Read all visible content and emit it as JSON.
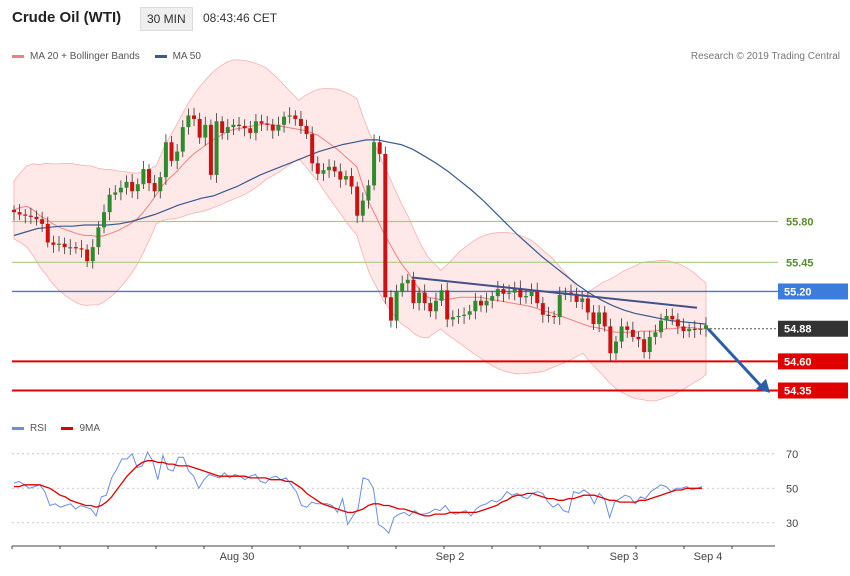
{
  "header": {
    "title": "Crude Oil (WTI)",
    "timeframe": "30 MIN",
    "time": "08:43:46 CET"
  },
  "legend": {
    "ma20_label": "MA 20 + Bollinger Bands",
    "ma50_label": "MA 50",
    "rsi_label": "RSI",
    "ma9_label": "9MA"
  },
  "copyright": "Research © 2019 Trading Central",
  "colors": {
    "ma20": "#f08080",
    "band": "#ffd9d9",
    "ma50": "#3a5a90",
    "up_candle": "#2e8b2e",
    "down_candle": "#cc1111",
    "support": "#e00000",
    "pivot": "#3c7ddc",
    "resistance": "#a8cc82",
    "last_price": "#333333",
    "trendline": "#44508a",
    "arrow": "#2a5ea8",
    "rsi": "#6a8ee0",
    "rsi_ma": "#e00000"
  },
  "chart_data": [
    {
      "type": "candlestick",
      "instrument": "Crude Oil (WTI)",
      "interval": "30 MIN",
      "price_range": [
        54.2,
        57.1
      ],
      "x_labels": [
        "Aug 30",
        "Sep 2",
        "Sep 3",
        "Sep 4"
      ],
      "levels": [
        {
          "label": "55.80",
          "value": 55.8,
          "role": "resistance"
        },
        {
          "label": "55.45",
          "value": 55.45,
          "role": "resistance"
        },
        {
          "label": "55.20",
          "value": 55.2,
          "role": "pivot"
        },
        {
          "label": "54.88",
          "value": 54.88,
          "role": "last_price"
        },
        {
          "label": "54.60",
          "value": 54.6,
          "role": "support"
        },
        {
          "label": "54.35",
          "value": 54.35,
          "role": "support"
        }
      ],
      "close": [
        55.88,
        55.86,
        55.85,
        55.84,
        55.82,
        55.78,
        55.62,
        55.6,
        55.61,
        55.58,
        55.58,
        55.57,
        55.56,
        55.46,
        55.58,
        55.75,
        55.88,
        56.03,
        56.05,
        56.09,
        56.14,
        56.06,
        56.12,
        56.25,
        56.13,
        56.06,
        56.18,
        56.48,
        56.32,
        56.4,
        56.61,
        56.71,
        56.68,
        56.52,
        56.63,
        56.2,
        56.66,
        56.56,
        56.61,
        56.63,
        56.62,
        56.6,
        56.56,
        56.66,
        56.64,
        56.63,
        56.58,
        56.63,
        56.7,
        56.71,
        56.68,
        56.62,
        56.55,
        56.3,
        56.21,
        56.24,
        56.27,
        56.23,
        56.16,
        56.19,
        56.1,
        55.85,
        55.98,
        56.11,
        56.48,
        56.38,
        55.15,
        54.95,
        55.2,
        55.27,
        55.3,
        55.1,
        55.19,
        55.1,
        55.03,
        55.12,
        55.21,
        54.96,
        54.98,
        54.99,
        55.0,
        55.03,
        55.12,
        55.08,
        55.12,
        55.16,
        55.22,
        55.18,
        55.19,
        55.23,
        55.15,
        55.16,
        55.21,
        55.1,
        55.0,
        54.99,
        54.98,
        55.17,
        55.19,
        55.18,
        55.11,
        55.14,
        55.02,
        54.92,
        55.02,
        54.9,
        54.67,
        54.77,
        54.9,
        54.87,
        54.81,
        54.79,
        54.68,
        54.81,
        54.85,
        54.95,
        54.99,
        54.96,
        54.9,
        54.86,
        54.88,
        54.87,
        54.88,
        54.91
      ],
      "volume_note": "",
      "ma20": [
        55.9,
        55.92,
        55.93,
        55.9,
        55.85,
        55.82,
        55.78,
        55.75,
        55.73,
        55.71,
        55.69,
        55.68,
        55.68,
        55.67,
        55.68,
        55.7,
        55.72,
        55.75,
        55.78,
        55.82,
        55.88,
        55.95,
        56.03,
        56.11,
        56.17,
        56.22,
        56.28,
        56.34,
        56.39,
        56.43,
        56.47,
        56.51,
        56.54,
        56.57,
        56.59,
        56.6,
        56.61,
        56.62,
        56.63,
        56.64,
        56.63,
        56.62,
        56.61,
        56.6,
        56.59,
        56.58,
        56.56,
        56.54,
        56.5,
        56.46,
        56.42,
        56.37,
        56.32,
        56.27,
        56.1,
        55.95,
        55.84,
        55.72,
        55.62,
        55.52,
        55.43,
        55.36,
        55.27,
        55.2,
        55.15,
        55.14,
        55.13,
        55.13,
        55.14,
        55.15,
        55.15,
        55.15,
        55.15,
        55.14,
        55.13,
        55.12,
        55.11,
        55.1,
        55.09,
        55.08,
        55.07,
        55.05,
        55.03,
        55.02,
        55.0,
        54.98,
        54.96,
        54.94,
        54.92,
        54.9,
        54.89,
        54.88,
        54.86,
        54.85,
        54.85,
        54.85,
        54.85,
        54.86,
        54.86,
        54.86,
        54.87,
        54.88,
        54.88,
        54.89,
        54.89,
        54.89,
        54.88,
        54.88
      ],
      "ma50": [
        55.68,
        55.71,
        55.74,
        55.75,
        55.76,
        55.76,
        55.77,
        55.77,
        55.77,
        55.78,
        55.8,
        55.83,
        55.86,
        55.9,
        55.94,
        55.97,
        56.0,
        56.02,
        56.06,
        56.1,
        56.15,
        56.2,
        56.24,
        56.28,
        56.32,
        56.36,
        56.4,
        56.43,
        56.46,
        56.48,
        56.5,
        56.5,
        56.48,
        56.46,
        56.42,
        56.36,
        56.3,
        56.23,
        56.15,
        56.07,
        55.98,
        55.88,
        55.78,
        55.68,
        55.59,
        55.5,
        55.42,
        55.34,
        55.26,
        55.19,
        55.13,
        55.08,
        55.04,
        55.01,
        54.99,
        54.97,
        54.95,
        54.94,
        54.93,
        54.92
      ],
      "ma50_start_index": 0,
      "ma20_start_index": 0
    },
    {
      "type": "line",
      "name": "RSI panel",
      "ylim": [
        20,
        78
      ],
      "y_ticks": [
        30,
        50,
        70
      ],
      "series": [
        {
          "name": "RSI",
          "values": [
            53,
            54,
            52,
            50,
            51,
            52,
            48,
            40,
            41,
            39,
            40,
            41,
            38,
            40,
            39,
            38,
            34,
            45,
            46,
            56,
            61,
            67,
            67,
            70,
            62,
            63,
            71,
            66,
            55,
            69,
            61,
            60,
            68,
            68,
            60,
            57,
            50,
            55,
            58,
            57,
            56,
            59,
            56,
            58,
            57,
            55,
            57,
            58,
            54,
            53,
            56,
            57,
            55,
            56,
            52,
            48,
            40,
            39,
            42,
            41,
            41,
            41,
            40,
            36,
            44,
            29,
            34,
            38,
            56,
            55,
            50,
            29,
            27,
            24,
            33,
            35,
            36,
            34,
            37,
            35,
            35,
            36,
            38,
            37,
            40,
            36,
            35,
            36,
            37,
            34,
            38,
            40,
            41,
            43,
            42,
            44,
            48,
            46,
            47,
            45,
            44,
            47,
            48,
            47,
            42,
            39,
            41,
            37,
            36,
            48,
            47,
            49,
            47,
            41,
            47,
            44,
            33,
            42,
            44,
            46,
            45,
            41,
            45,
            44,
            48,
            50,
            52,
            51,
            48,
            50,
            50,
            51,
            49,
            50,
            51
          ]
        },
        {
          "name": "9MA",
          "values": [
            51,
            51,
            52,
            52,
            52,
            52,
            51,
            50,
            48,
            46,
            45,
            43,
            42,
            41,
            40,
            40,
            39,
            40,
            42,
            45,
            49,
            53,
            57,
            60,
            63,
            65,
            66,
            66,
            65,
            65,
            64,
            64,
            63,
            63,
            63,
            62,
            61,
            60,
            59,
            58,
            57,
            57,
            57,
            57,
            57,
            57,
            56,
            56,
            56,
            56,
            55,
            55,
            55,
            54,
            54,
            52,
            50,
            47,
            45,
            43,
            41,
            40,
            39,
            38,
            37,
            36,
            36,
            37,
            38,
            40,
            41,
            41,
            40,
            40,
            39,
            38,
            38,
            37,
            36,
            35,
            34,
            34,
            35,
            35,
            35,
            36,
            36,
            36,
            36,
            36,
            36,
            37,
            38,
            39,
            40,
            42,
            43,
            45,
            46,
            46,
            47,
            47,
            46,
            45,
            44,
            44,
            43,
            43,
            44,
            44,
            45,
            46,
            46,
            46,
            45,
            44,
            43,
            43,
            42,
            42,
            42,
            42,
            43,
            43,
            44,
            45,
            46,
            47,
            48,
            49,
            49,
            50,
            50,
            50,
            50
          ]
        }
      ]
    }
  ]
}
